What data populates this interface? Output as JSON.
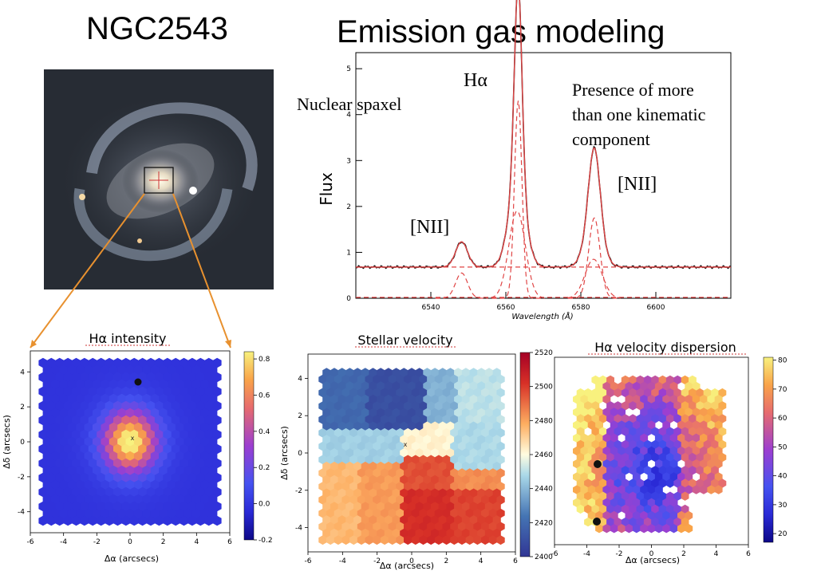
{
  "title_left": "NGC2543",
  "title_right": "Emission gas modeling",
  "galaxy_image": {
    "alt": "Galaxy image"
  },
  "spectrum": {
    "ylabel": "Flux",
    "xlabel": "Wavelength (Å)",
    "xticks": [
      "6540",
      "6560",
      "6580",
      "6600"
    ],
    "yticks": [
      "0",
      "1",
      "2",
      "3",
      "4",
      "5"
    ],
    "annotations": {
      "ha": "Hα",
      "nii_left": "[NII]",
      "nii_right": "[NII]",
      "nuclear": "Nuclear spaxel",
      "presence_1": "Presence of more",
      "presence_2": "than one kinematic",
      "presence_3": "component"
    }
  },
  "maps": {
    "ha_intensity": {
      "title": "Hα intensity",
      "xlabel": "Δα (arcsecs)",
      "ylabel": "Δδ (arcsecs)",
      "xticks": [
        "-6",
        "-4",
        "-2",
        "0",
        "2",
        "4",
        "6"
      ],
      "yticks": [
        "4",
        "2",
        "0",
        "-2",
        "-4"
      ],
      "cbar_ticks": [
        "0.8",
        "0.6",
        "0.4",
        "0.2",
        "0.0",
        "-0.2"
      ]
    },
    "stellar_velocity": {
      "title": "Stellar velocity",
      "xlabel": "Δα (arcsecs)",
      "ylabel": "Δδ (arcsecs)",
      "xticks": [
        "-6",
        "-4",
        "-2",
        "0",
        "2",
        "4",
        "6"
      ],
      "yticks": [
        "4",
        "2",
        "0",
        "-2",
        "-4"
      ],
      "cbar_ticks": [
        "2520",
        "2500",
        "2480",
        "2460",
        "2440",
        "2420",
        "2400"
      ]
    },
    "ha_dispersion": {
      "title": "Hα velocity dispersion",
      "xlabel": "Δα (arcsecs)",
      "xticks": [
        "-6",
        "-4",
        "-2",
        "0",
        "2",
        "4",
        "6"
      ],
      "cbar_ticks": [
        "80",
        "70",
        "60",
        "50",
        "40",
        "30",
        "20"
      ]
    }
  }
}
